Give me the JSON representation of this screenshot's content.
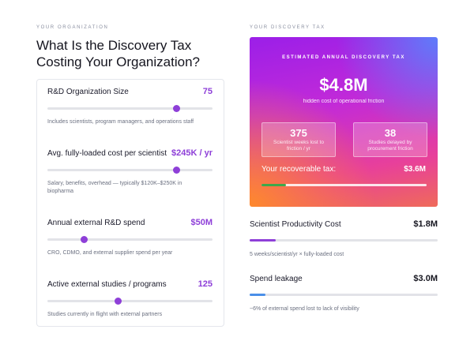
{
  "left": {
    "eyebrow": "YOUR ORGANIZATION",
    "title": "What Is the Discovery Tax Costing Your Organization?",
    "inputs": [
      {
        "label": "R&D Organization Size",
        "value": "75",
        "help": "Includes scientists, program managers, and operations staff"
      },
      {
        "label": "Avg. fully-loaded cost per scientist",
        "value": "$245K / yr",
        "help": "Salary, benefits, overhead — typically $120K–$250K in biopharma"
      },
      {
        "label": "Annual external R&D spend",
        "value": "$50M",
        "help": "CRO, CDMO, and external supplier spend per year"
      },
      {
        "label": "Active external studies / programs",
        "value": "125",
        "help": "Studies currently in flight with external partners"
      }
    ]
  },
  "right": {
    "eyebrow": "YOUR DISCOVERY TAX",
    "summary": {
      "heading": "ESTIMATED ANNUAL DISCOVERY TAX",
      "total": "$4.8M",
      "caption": "hidden cost of operational friction",
      "stats": [
        {
          "value": "375",
          "label": "Scientist weeks lost to friction / yr"
        },
        {
          "value": "38",
          "label": "Studies delayed by procurement friction"
        }
      ],
      "recoverable_label": "Your recoverable tax:",
      "recoverable_value": "$3.6M"
    },
    "breakdown": [
      {
        "label": "Scientist Productivity Cost",
        "value": "$1.8M",
        "help": "5 weeks/scientist/yr × fully-loaded cost"
      },
      {
        "label": "Spend leakage",
        "value": "$3.0M",
        "help": "~6% of external spend lost to lack of visibility"
      }
    ]
  }
}
